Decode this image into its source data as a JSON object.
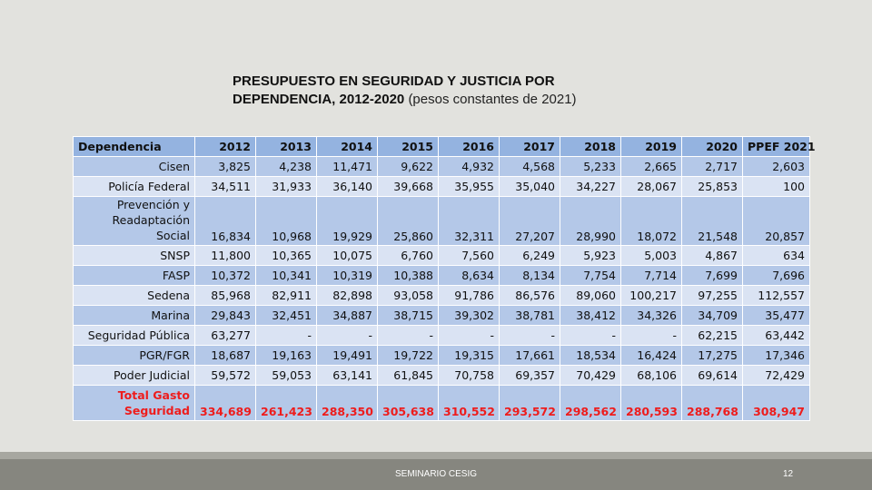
{
  "title": {
    "line1": "PRESUPUESTO EN SEGURIDAD Y JUSTICIA POR",
    "line2": "DEPENDENCIA, 2012-2020",
    "subtitle": "(pesos constantes de 2021)"
  },
  "table": {
    "headers": [
      "Dependencia",
      "2012",
      "2013",
      "2014",
      "2015",
      "2016",
      "2017",
      "2018",
      "2019",
      "2020",
      "PPEF 2021"
    ],
    "rows": [
      {
        "label": "Cisen",
        "values": [
          "3,825",
          "4,238",
          "11,471",
          "9,622",
          "4,932",
          "4,568",
          "5,233",
          "2,665",
          "2,717",
          "2,603"
        ]
      },
      {
        "label": "Policía Federal",
        "values": [
          "34,511",
          "31,933",
          "36,140",
          "39,668",
          "35,955",
          "35,040",
          "34,227",
          "28,067",
          "25,853",
          "100"
        ]
      },
      {
        "label": "Prevención y Readaptación Social",
        "values": [
          "16,834",
          "10,968",
          "19,929",
          "25,860",
          "32,311",
          "27,207",
          "28,990",
          "18,072",
          "21,548",
          "20,857"
        ]
      },
      {
        "label": "SNSP",
        "values": [
          "11,800",
          "10,365",
          "10,075",
          "6,760",
          "7,560",
          "6,249",
          "5,923",
          "5,003",
          "4,867",
          "634"
        ]
      },
      {
        "label": "FASP",
        "values": [
          "10,372",
          "10,341",
          "10,319",
          "10,388",
          "8,634",
          "8,134",
          "7,754",
          "7,714",
          "7,699",
          "7,696"
        ]
      },
      {
        "label": "Sedena",
        "values": [
          "85,968",
          "82,911",
          "82,898",
          "93,058",
          "91,786",
          "86,576",
          "89,060",
          "100,217",
          "97,255",
          "112,557"
        ]
      },
      {
        "label": "Marina",
        "values": [
          "29,843",
          "32,451",
          "34,887",
          "38,715",
          "39,302",
          "38,781",
          "38,412",
          "34,326",
          "34,709",
          "35,477"
        ]
      },
      {
        "label": "Seguridad Pública",
        "values": [
          "63,277",
          "-",
          "-",
          "-",
          "-",
          "-",
          "-",
          "-",
          "62,215",
          "63,442"
        ]
      },
      {
        "label": "PGR/FGR",
        "values": [
          "18,687",
          "19,163",
          "19,491",
          "19,722",
          "19,315",
          "17,661",
          "18,534",
          "16,424",
          "17,275",
          "17,346"
        ]
      },
      {
        "label": "Poder Judicial",
        "values": [
          "59,572",
          "59,053",
          "63,141",
          "61,845",
          "70,758",
          "69,357",
          "70,429",
          "68,106",
          "69,614",
          "72,429"
        ]
      },
      {
        "label": "Total Gasto Seguridad",
        "values": [
          "334,689",
          "261,423",
          "288,350",
          "305,638",
          "310,552",
          "293,572",
          "298,562",
          "280,593",
          "288,768",
          "308,947"
        ]
      }
    ]
  },
  "footer": {
    "text": "SEMINARIO CESIG",
    "page": "12"
  }
}
